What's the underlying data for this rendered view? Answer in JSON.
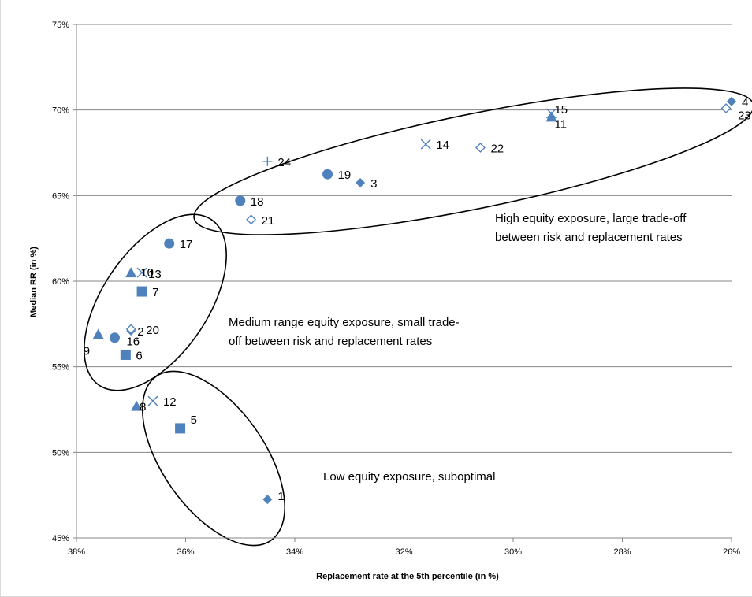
{
  "chart_data": {
    "type": "scatter",
    "title": "",
    "xlabel": "Replacement rate at the 5th percentile (in %)",
    "ylabel": "Median RR (in %)",
    "x_reversed": true,
    "xlim": [
      0.38,
      0.26
    ],
    "ylim": [
      0.45,
      0.75
    ],
    "x_ticks": [
      0.38,
      0.36,
      0.34,
      0.32,
      0.3,
      0.28,
      0.26
    ],
    "x_tick_labels": [
      "38%",
      "36%",
      "34%",
      "32%",
      "30%",
      "28%",
      "26%"
    ],
    "y_ticks": [
      0.45,
      0.5,
      0.55,
      0.6,
      0.65,
      0.7,
      0.75
    ],
    "y_tick_labels": [
      "45%",
      "50%",
      "55%",
      "60%",
      "65%",
      "70%",
      "75%"
    ],
    "grid": "horizontal",
    "legend": "none",
    "marker_color": "#4F81BD",
    "points": [
      {
        "label": "1",
        "x": 0.345,
        "y": 0.4725,
        "marker": "diamond"
      },
      {
        "label": "2",
        "x": 0.37,
        "y": 0.571,
        "marker": "diamond"
      },
      {
        "label": "3",
        "x": 0.328,
        "y": 0.6575,
        "marker": "diamond"
      },
      {
        "label": "4",
        "x": 0.26,
        "y": 0.705,
        "marker": "diamond"
      },
      {
        "label": "5",
        "x": 0.361,
        "y": 0.514,
        "marker": "square"
      },
      {
        "label": "6",
        "x": 0.371,
        "y": 0.557,
        "marker": "square"
      },
      {
        "label": "7",
        "x": 0.368,
        "y": 0.594,
        "marker": "square"
      },
      {
        "label": "8",
        "x": 0.369,
        "y": 0.527,
        "marker": "triangle"
      },
      {
        "label": "9",
        "x": 0.376,
        "y": 0.569,
        "marker": "triangle"
      },
      {
        "label": "10",
        "x": 0.37,
        "y": 0.605,
        "marker": "triangle"
      },
      {
        "label": "11",
        "x": 0.293,
        "y": 0.696,
        "marker": "triangle"
      },
      {
        "label": "12",
        "x": 0.366,
        "y": 0.53,
        "marker": "cross"
      },
      {
        "label": "13",
        "x": 0.368,
        "y": 0.605,
        "marker": "cross"
      },
      {
        "label": "14",
        "x": 0.316,
        "y": 0.68,
        "marker": "cross"
      },
      {
        "label": "15",
        "x": 0.293,
        "y": 0.698,
        "marker": "cross"
      },
      {
        "label": "16",
        "x": 0.373,
        "y": 0.567,
        "marker": "circle"
      },
      {
        "label": "17",
        "x": 0.363,
        "y": 0.622,
        "marker": "circle"
      },
      {
        "label": "18",
        "x": 0.35,
        "y": 0.647,
        "marker": "circle"
      },
      {
        "label": "19",
        "x": 0.334,
        "y": 0.6625,
        "marker": "circle"
      },
      {
        "label": "20",
        "x": 0.37,
        "y": 0.572,
        "marker": "open-diamond"
      },
      {
        "label": "21",
        "x": 0.348,
        "y": 0.636,
        "marker": "open-diamond"
      },
      {
        "label": "22",
        "x": 0.306,
        "y": 0.678,
        "marker": "open-diamond"
      },
      {
        "label": "23",
        "x": 0.261,
        "y": 0.701,
        "marker": "open-diamond"
      },
      {
        "label": "24",
        "x": 0.345,
        "y": 0.67,
        "marker": "plus"
      }
    ],
    "annotations": [
      {
        "name": "high-equity-note",
        "lines": [
          "High equity exposure, large trade-off",
          "between risk and replacement rates"
        ]
      },
      {
        "name": "medium-equity-note",
        "lines": [
          "Medium range equity exposure, small trade-",
          "off between risk and replacement rates"
        ]
      },
      {
        "name": "low-equity-note",
        "lines": [
          "Low equity exposure, suboptimal"
        ]
      }
    ]
  }
}
